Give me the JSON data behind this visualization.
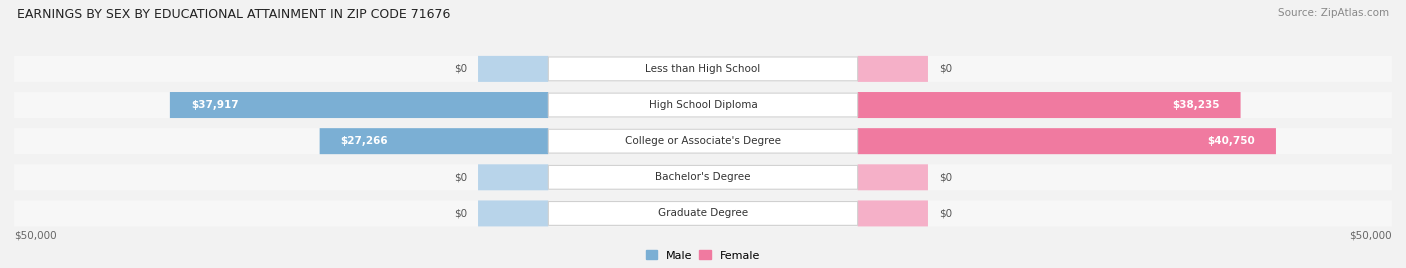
{
  "title": "EARNINGS BY SEX BY EDUCATIONAL ATTAINMENT IN ZIP CODE 71676",
  "source": "Source: ZipAtlas.com",
  "categories": [
    "Less than High School",
    "High School Diploma",
    "College or Associate's Degree",
    "Bachelor's Degree",
    "Graduate Degree"
  ],
  "male_values": [
    0,
    37917,
    27266,
    0,
    0
  ],
  "female_values": [
    0,
    38235,
    40750,
    0,
    0
  ],
  "zero_stub": 5000,
  "max_value": 50000,
  "male_color": "#7bafd4",
  "female_color": "#f07aa0",
  "male_color_light": "#b8d4ea",
  "female_color_light": "#f5b0c8",
  "male_label": "Male",
  "female_label": "Female",
  "axis_label_left": "$50,000",
  "axis_label_right": "$50,000",
  "bg_color": "#f2f2f2",
  "row_bg_color": "#e8e8e8",
  "row_bg_light": "#f7f7f7",
  "title_fontsize": 9,
  "source_fontsize": 7.5,
  "label_fontsize": 7.5,
  "value_fontsize": 7.5
}
